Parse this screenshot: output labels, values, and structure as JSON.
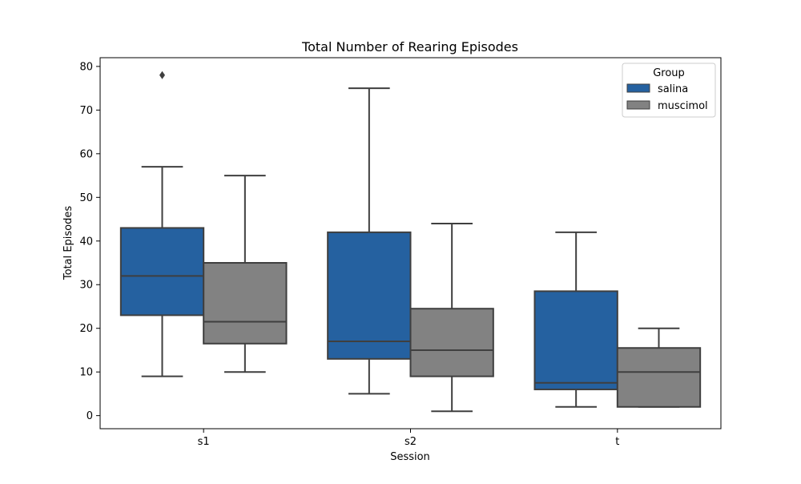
{
  "chart_data": {
    "type": "box",
    "title": "Total Number of Rearing Episodes",
    "xlabel": "Session",
    "ylabel": "Total Episodes",
    "categories": [
      "s1",
      "s2",
      "t"
    ],
    "ylim": [
      -3,
      82
    ],
    "yticks": [
      0,
      10,
      20,
      30,
      40,
      50,
      60,
      70,
      80
    ],
    "grid": false,
    "legend": {
      "title": "Group",
      "position": "top-right"
    },
    "series": [
      {
        "name": "salina",
        "color": "#2561a0",
        "boxes": [
          {
            "category": "s1",
            "whisker_low": 9,
            "q1": 23,
            "median": 32,
            "q3": 43,
            "whisker_high": 57,
            "outliers": [
              78
            ]
          },
          {
            "category": "s2",
            "whisker_low": 5,
            "q1": 13,
            "median": 17,
            "q3": 42,
            "whisker_high": 75,
            "outliers": []
          },
          {
            "category": "t",
            "whisker_low": 2,
            "q1": 6,
            "median": 7.5,
            "q3": 28.5,
            "whisker_high": 42,
            "outliers": []
          }
        ]
      },
      {
        "name": "muscimol",
        "color": "#828282",
        "boxes": [
          {
            "category": "s1",
            "whisker_low": 10,
            "q1": 16.5,
            "median": 21.5,
            "q3": 35,
            "whisker_high": 55,
            "outliers": []
          },
          {
            "category": "s2",
            "whisker_low": 1,
            "q1": 9,
            "median": 15,
            "q3": 24.5,
            "whisker_high": 44,
            "outliers": []
          },
          {
            "category": "t",
            "whisker_low": 2,
            "q1": 2,
            "median": 10,
            "q3": 15.5,
            "whisker_high": 20,
            "outliers": []
          }
        ]
      }
    ]
  }
}
